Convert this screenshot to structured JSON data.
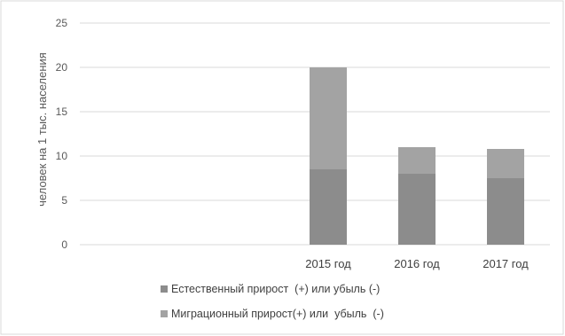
{
  "chart_data": {
    "type": "bar",
    "stacked": true,
    "categories": [
      "",
      "",
      "2015 год",
      "2016 год",
      "2017 год"
    ],
    "series": [
      {
        "name": "Естественный прирост  (+) или убыль (-)",
        "values": [
          0,
          0,
          8.5,
          8.0,
          7.5
        ],
        "color": "#8c8c8c"
      },
      {
        "name": "Миграционный прирост(+) или  убыль  (-)",
        "values": [
          0,
          0,
          11.5,
          3.0,
          3.3
        ],
        "color": "#a3a3a3"
      }
    ],
    "ylabel": "человек на 1 тыс. населения",
    "ylim": [
      0,
      25
    ],
    "yticks": [
      0,
      5,
      10,
      15,
      20,
      25
    ],
    "grid": true,
    "legend_position": "bottom-left"
  }
}
